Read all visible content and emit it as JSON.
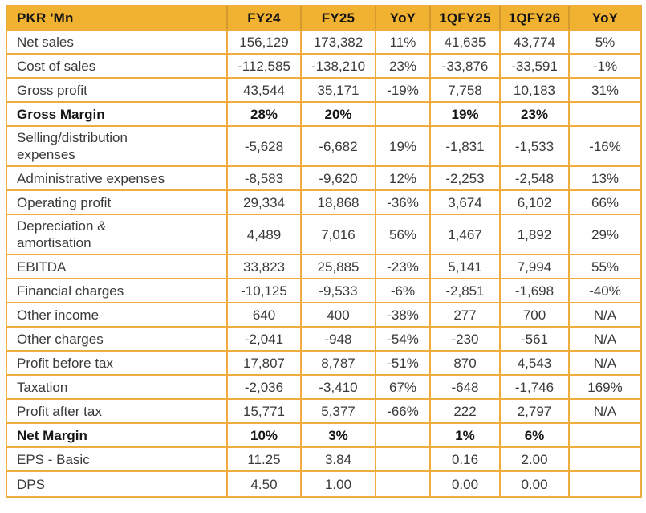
{
  "colors": {
    "header-bg": "#F2B231",
    "border": "#F0AC3D",
    "header-divider": "#D6992B",
    "text": "#3A3A3A",
    "bold-text": "#161616",
    "header-text": "#141414",
    "row-bg": "#FFFFFF"
  },
  "chart_data": {
    "type": "table",
    "title": "PKR 'Mn",
    "columns": [
      "PKR 'Mn",
      "FY24",
      "FY25",
      "YoY",
      "1QFY25",
      "1QFY26",
      "YoY"
    ],
    "rows": [
      [
        "Net sales",
        "156,129",
        "173,382",
        "11%",
        "41,635",
        "43,774",
        "5%"
      ],
      [
        "Cost of sales",
        "-112,585",
        "-138,210",
        "23%",
        "-33,876",
        "-33,591",
        "-1%"
      ],
      [
        "Gross profit",
        "43,544",
        "35,171",
        "-19%",
        "7,758",
        "10,183",
        "31%"
      ],
      [
        "Gross Margin",
        "28%",
        "20%",
        "",
        "19%",
        "23%",
        ""
      ],
      [
        "Selling/distribution expenses",
        "-5,628",
        "-6,682",
        "19%",
        "-1,831",
        "-1,533",
        "-16%"
      ],
      [
        "Administrative expenses",
        "-8,583",
        "-9,620",
        "12%",
        "-2,253",
        "-2,548",
        "13%"
      ],
      [
        "Operating profit",
        "29,334",
        "18,868",
        "-36%",
        "3,674",
        "6,102",
        "66%"
      ],
      [
        "Depreciation & amortisation",
        "4,489",
        "7,016",
        "56%",
        "1,467",
        "1,892",
        "29%"
      ],
      [
        "EBITDA",
        "33,823",
        "25,885",
        "-23%",
        "5,141",
        "7,994",
        "55%"
      ],
      [
        "Financial charges",
        "-10,125",
        "-9,533",
        "-6%",
        "-2,851",
        "-1,698",
        "-40%"
      ],
      [
        "Other income",
        "640",
        "400",
        "-38%",
        "277",
        "700",
        "N/A"
      ],
      [
        "Other charges",
        "-2,041",
        "-948",
        "-54%",
        "-230",
        "-561",
        "N/A"
      ],
      [
        "Profit before tax",
        "17,807",
        "8,787",
        "-51%",
        "870",
        "4,543",
        "N/A"
      ],
      [
        "Taxation",
        "-2,036",
        "-3,410",
        "67%",
        "-648",
        "-1,746",
        "169%"
      ],
      [
        "Profit after tax",
        "15,771",
        "5,377",
        "-66%",
        "222",
        "2,797",
        "N/A"
      ],
      [
        "Net Margin",
        "10%",
        "3%",
        "",
        "1%",
        "6%",
        ""
      ],
      [
        "EPS - Basic",
        "11.25",
        "3.84",
        "",
        "0.16",
        "2.00",
        ""
      ],
      [
        "DPS",
        "4.50",
        "1.00",
        "",
        "0.00",
        "0.00",
        ""
      ]
    ],
    "bold_row_indices": [
      3,
      15
    ],
    "two_line_label_indices": [
      4,
      7
    ],
    "grid": "full-borders",
    "legend_position": "none"
  }
}
